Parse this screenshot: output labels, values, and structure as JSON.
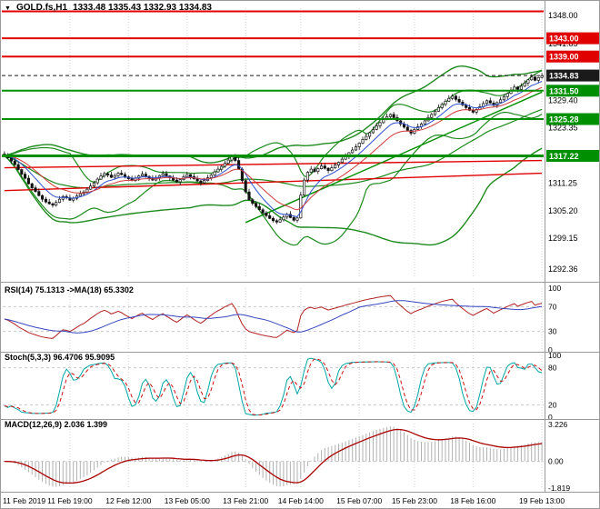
{
  "header": {
    "symbol_marker": "▼",
    "symbol": "GOLD.fs,H1",
    "ohlc": "1333.48 1335.43 1332.93 1334.83"
  },
  "chart_data": {
    "type": "candlestick",
    "symbol": "GOLD.fs,H1",
    "timeframe": "H1",
    "x_labels": [
      "11 Feb 2019",
      "11 Feb 19:00",
      "12 Feb 12:00",
      "13 Feb 05:00",
      "13 Feb 21:00",
      "14 Feb 14:00",
      "15 Feb 07:00",
      "15 Feb 23:00",
      "18 Feb 16:00",
      "19 Feb 13:00"
    ],
    "x_label_indices": [
      0,
      19,
      36,
      53,
      70,
      86,
      103,
      119,
      136,
      156
    ],
    "closes": [
      1317.2,
      1316.8,
      1316.1,
      1315.3,
      1314.2,
      1313.2,
      1312.3,
      1311.1,
      1310.2,
      1309.4,
      1308.5,
      1307.7,
      1307.1,
      1306.7,
      1306.4,
      1307.0,
      1307.7,
      1308.3,
      1308.0,
      1307.5,
      1307.9,
      1308.4,
      1308.9,
      1309.3,
      1309.9,
      1310.6,
      1311.3,
      1312.1,
      1312.8,
      1313.3,
      1313.0,
      1312.5,
      1312.9,
      1313.4,
      1313.1,
      1312.6,
      1312.2,
      1311.8,
      1312.3,
      1312.8,
      1313.2,
      1312.7,
      1312.3,
      1311.9,
      1312.4,
      1312.9,
      1313.3,
      1312.8,
      1312.4,
      1311.9,
      1311.5,
      1312.0,
      1312.6,
      1313.1,
      1312.7,
      1312.2,
      1311.7,
      1311.3,
      1311.8,
      1312.4,
      1313.0,
      1313.7,
      1314.3,
      1314.9,
      1315.6,
      1316.3,
      1317.1,
      1316.2,
      1314.3,
      1311.8,
      1309.3,
      1307.6,
      1306.8,
      1306.1,
      1305.4,
      1304.7,
      1304.1,
      1303.5,
      1303.0,
      1302.7,
      1303.2,
      1303.8,
      1304.4,
      1303.7,
      1303.1,
      1303.6,
      1308.6,
      1311.9,
      1313.6,
      1314.3,
      1313.8,
      1314.4,
      1315.0,
      1314.5,
      1314.0,
      1314.6,
      1315.2,
      1315.8,
      1316.5,
      1317.2,
      1317.9,
      1318.5,
      1319.2,
      1320.0,
      1320.8,
      1321.5,
      1322.3,
      1323.0,
      1323.8,
      1324.5,
      1325.2,
      1325.8,
      1326.3,
      1325.6,
      1324.9,
      1324.2,
      1323.5,
      1322.8,
      1322.2,
      1323.0,
      1323.6,
      1324.2,
      1324.9,
      1325.6,
      1326.3,
      1327.0,
      1327.8,
      1328.5,
      1329.2,
      1329.8,
      1330.3,
      1329.6,
      1329.0,
      1328.4,
      1327.8,
      1327.2,
      1326.8,
      1327.4,
      1328.0,
      1328.7,
      1329.3,
      1328.8,
      1328.3,
      1328.9,
      1329.5,
      1330.2,
      1330.9,
      1331.6,
      1332.3,
      1331.8,
      1332.5,
      1333.2,
      1333.9,
      1334.5,
      1333.8,
      1334.4,
      1334.8
    ],
    "y_axis": {
      "top_price": 1349.6,
      "bottom_price": 1290.8,
      "ticks": [
        {
          "p": 1348.0,
          "t": "1348.00"
        },
        {
          "p": 1341.85,
          "t": "1341.85"
        },
        {
          "p": 1329.4,
          "t": "1329.40"
        },
        {
          "p": 1323.35,
          "t": "1323.35"
        },
        {
          "p": 1311.25,
          "t": "1311.25"
        },
        {
          "p": 1305.2,
          "t": "1305.20"
        },
        {
          "p": 1299.15,
          "t": "1299.15"
        },
        {
          "p": 1292.36,
          "t": "1292.36"
        }
      ]
    },
    "levels": [
      {
        "price": 1348.9,
        "label": null,
        "color": "#e00000",
        "width": 2
      },
      {
        "price": 1343.0,
        "label": "1343.00",
        "color": "#e00000",
        "width": 2
      },
      {
        "price": 1339.0,
        "label": "1339.00",
        "color": "#e00000",
        "width": 2
      },
      {
        "price": 1334.83,
        "label": "1334.83",
        "color": "#1a1a1a",
        "width": 1,
        "dash": "4,3"
      },
      {
        "price": 1331.5,
        "label": "1331.50",
        "color": "#008f00",
        "width": 2
      },
      {
        "price": 1325.28,
        "label": "1325.28",
        "color": "#008f00",
        "width": 2
      },
      {
        "price": 1317.22,
        "label": "1317.22",
        "color": "#008f00",
        "width": 3
      }
    ],
    "trendlines": [
      {
        "i1": 0,
        "p1": 1314.6,
        "i2": 156,
        "p2": 1316.2,
        "color": "#e00000",
        "width": 1.4
      },
      {
        "i1": 0,
        "p1": 1309.6,
        "i2": 156,
        "p2": 1313.4,
        "color": "#e00000",
        "width": 1.4
      },
      {
        "i1": 70,
        "p1": 1302.6,
        "i2": 156,
        "p2": 1331.2,
        "color": "#008f00",
        "width": 1.4
      }
    ],
    "overlays": {
      "bb_fast": {
        "period": 20,
        "dev": 2
      },
      "bb_slow": {
        "period": 55,
        "dev": 2.2
      },
      "ema_fast": 8,
      "ema_slow": 16
    },
    "indicators": {
      "rsi": {
        "label": "RSI(14) 75.1313  ->MA(18) 65.3302",
        "period": 14,
        "ma": 18,
        "ticks": [
          100,
          70,
          30,
          0
        ],
        "levels": [
          70,
          30
        ]
      },
      "stoch": {
        "label": "Stoch(5,3,3) 96.4706 95.9095",
        "k": 5,
        "slowing": 3,
        "d": 3,
        "ticks": [
          100,
          80,
          20,
          0
        ],
        "levels": [
          80,
          20
        ]
      },
      "macd": {
        "label": "MACD(12,26,9) 2.036 1.399",
        "fast": 12,
        "slow": 26,
        "signal": 9,
        "tick_labels": [
          "3.226",
          "0.00",
          "-1.819"
        ]
      }
    },
    "colors": {
      "up_candle": "#ffffff",
      "down_candle": "#111111",
      "outline": "#111111",
      "bollinger": "#1e8a1e",
      "ema_fast": "#2f4fd0",
      "ema_slow": "#d03a3a",
      "rsi": "#b22222",
      "rsi_ma": "#3545c0",
      "stoch_k": "#00a6a6",
      "stoch_d": "#cc1111",
      "macd_signal": "#aa0000",
      "macd_hist": "#b0b0b0",
      "grid": "#d4d4d4",
      "dashed_level": "#c8c8c8",
      "border": "#9a9a9a",
      "axis_text": "#000000"
    }
  }
}
